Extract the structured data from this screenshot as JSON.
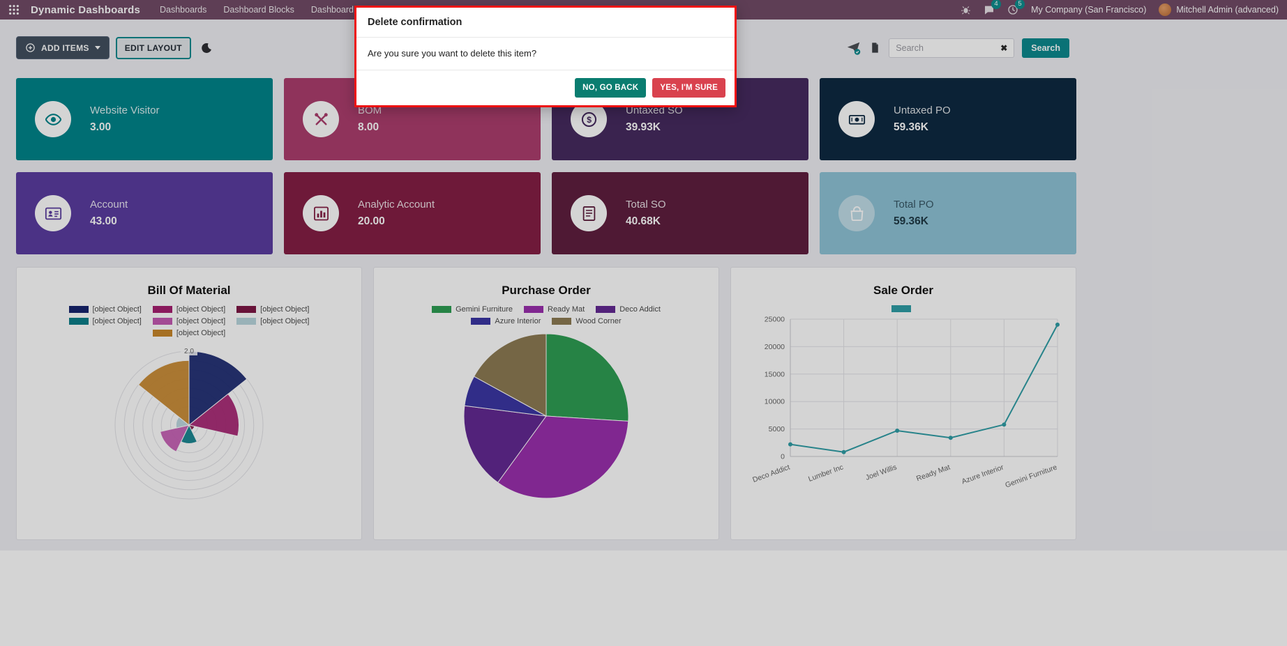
{
  "navbar": {
    "app_title": "Dynamic Dashboards",
    "menu_items": [
      "Dashboards",
      "Dashboard Blocks",
      "Dashboard Menu"
    ],
    "messages_badge": "4",
    "activities_badge": "5",
    "company_name": "My Company (San Francisco)",
    "user_name": "Mitchell Admin (advanced)"
  },
  "toolbar": {
    "add_items_label": "ADD ITEMS",
    "edit_layout_label": "EDIT LAYOUT",
    "search_placeholder": "Search",
    "search_button_label": "Search"
  },
  "modal": {
    "title": "Delete confirmation",
    "message": "Are you sure you want to delete this item?",
    "cancel_label": "NO, GO BACK",
    "confirm_label": "YES, I'M SURE",
    "border_color": "#ee1111"
  },
  "tiles": [
    {
      "label": "Website Visitor",
      "value": "3.00",
      "color": "#00858b",
      "icon": "eye-icon"
    },
    {
      "label": "BOM",
      "value": "8.00",
      "color": "#ad3e6e",
      "icon": "tools-icon"
    },
    {
      "label": "Untaxed SO",
      "value": "39.93K",
      "color": "#462b60",
      "icon": "dollar-icon"
    },
    {
      "label": "Untaxed PO",
      "value": "59.36K",
      "color": "#0e2a42",
      "icon": "money-icon"
    },
    {
      "label": "Account",
      "value": "43.00",
      "color": "#5b3da0",
      "icon": "id-card-icon"
    },
    {
      "label": "Analytic Account",
      "value": "20.00",
      "color": "#851f45",
      "icon": "bar-chart-icon"
    },
    {
      "label": "Total SO",
      "value": "40.68K",
      "color": "#5f1f3f",
      "icon": "list-icon"
    },
    {
      "label": "Total PO",
      "value": "59.36K",
      "color": "#8ec3d6",
      "icon": "bag-icon",
      "text_dark": true
    }
  ],
  "chart_data": [
    {
      "type": "polarArea",
      "title": "Bill Of Material",
      "legend": [
        {
          "label": "[object Object]",
          "color": "#16246e"
        },
        {
          "label": "[object Object]",
          "color": "#a62070"
        },
        {
          "label": "[object Object]",
          "color": "#7e1845"
        },
        {
          "label": "[object Object]",
          "color": "#0b7f8a"
        },
        {
          "label": "[object Object]",
          "color": "#c45ab2"
        },
        {
          "label": "[object Object]",
          "color": "#b9d6de"
        },
        {
          "label": "[object Object]",
          "color": "#c8872b"
        }
      ],
      "values": [
        2.0,
        1.35,
        0.15,
        0.5,
        0.8,
        0.35,
        1.75
      ],
      "scale_max": 2.0,
      "tick_label": "2.0",
      "grid": true,
      "legend_position": "top"
    },
    {
      "type": "pie",
      "title": "Purchase Order",
      "legend": [
        {
          "label": "Gemini Furniture",
          "color": "#2e9e54"
        },
        {
          "label": "Ready Mat",
          "color": "#9a30ae"
        },
        {
          "label": "Deco Addict",
          "color": "#632a93"
        },
        {
          "label": "Azure Interior",
          "color": "#3c37a4"
        },
        {
          "label": "Wood Corner",
          "color": "#8d7b54"
        }
      ],
      "values": [
        26,
        34,
        17,
        6,
        17
      ],
      "legend_position": "top"
    },
    {
      "type": "line",
      "title": "Sale Order",
      "legend": [
        {
          "label": "",
          "color": "#2f9ea6"
        }
      ],
      "categories": [
        "Deco Addict",
        "Lumber Inc",
        "Joel Willis",
        "Ready Mat",
        "Azure Interior",
        "Gemini Furniture"
      ],
      "values": [
        2200,
        800,
        4700,
        3400,
        5800,
        24000
      ],
      "ylim": [
        0,
        25000
      ],
      "yticks": [
        0,
        5000,
        10000,
        15000,
        20000,
        25000
      ],
      "color": "#2f9ea6",
      "grid": true,
      "legend_position": "top"
    }
  ]
}
